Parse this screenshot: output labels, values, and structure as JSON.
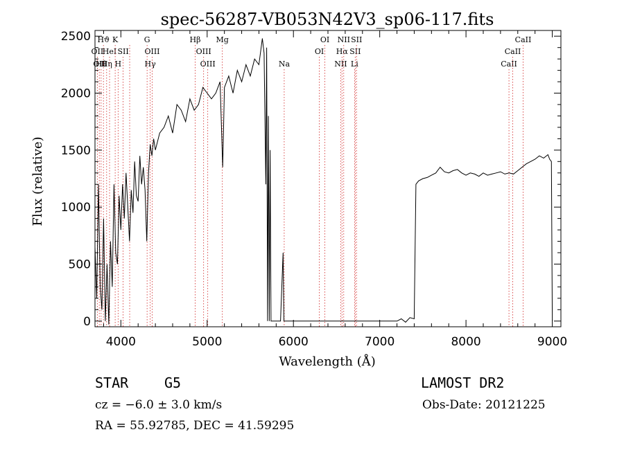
{
  "chart_data": {
    "type": "line",
    "title": "spec-56287-VB053N42V3_sp06-117.fits",
    "xlabel": "Wavelength (Å)",
    "ylabel": "Flux (relative)",
    "xlim": [
      3700,
      9100
    ],
    "ylim": [
      -50,
      2550
    ],
    "x_ticks": [
      4000,
      5000,
      6000,
      7000,
      8000,
      9000
    ],
    "y_ticks": [
      0,
      500,
      1000,
      1500,
      2000,
      2500
    ],
    "grid": false,
    "series": [
      {
        "x": [
          3700,
          3720,
          3740,
          3760,
          3780,
          3800,
          3820,
          3840,
          3860,
          3880,
          3900,
          3920,
          3940,
          3960,
          3980,
          4000,
          4020,
          4040,
          4060,
          4080,
          4100,
          4120,
          4140,
          4160,
          4180,
          4200,
          4220,
          4240,
          4260,
          4280,
          4300,
          4320,
          4340,
          4360,
          4380,
          4400,
          4450,
          4500,
          4550,
          4600,
          4650,
          4700,
          4750,
          4800,
          4850,
          4900,
          4950,
          5000,
          5050,
          5100,
          5150,
          5180,
          5200,
          5250,
          5300,
          5350,
          5400,
          5450,
          5500,
          5550,
          5600,
          5640,
          5660,
          5680,
          5690,
          5700,
          5710,
          5720,
          5730,
          5740,
          5760,
          5800,
          5850,
          5880,
          5890,
          5900,
          5910,
          5950,
          6000,
          6500,
          7000,
          7200,
          7250,
          7300,
          7350,
          7400,
          7420,
          7450,
          7500,
          7550,
          7600,
          7650,
          7700,
          7750,
          7800,
          7850,
          7900,
          7950,
          8000,
          8050,
          8100,
          8150,
          8200,
          8250,
          8300,
          8350,
          8400,
          8450,
          8500,
          8550,
          8600,
          8650,
          8700,
          8750,
          8800,
          8850,
          8900,
          8950,
          8970,
          8990,
          9000
        ],
        "y": [
          650,
          200,
          1200,
          300,
          100,
          900,
          0,
          500,
          -30,
          700,
          300,
          1200,
          600,
          500,
          1100,
          800,
          1200,
          900,
          1300,
          1000,
          700,
          1150,
          950,
          1400,
          1100,
          1050,
          1450,
          1200,
          1350,
          1150,
          700,
          1300,
          1550,
          1450,
          1600,
          1500,
          1650,
          1700,
          1800,
          1650,
          1900,
          1850,
          1750,
          1950,
          1850,
          1900,
          2050,
          2000,
          1950,
          2000,
          2100,
          1350,
          2050,
          2150,
          2000,
          2200,
          2100,
          2250,
          2150,
          2300,
          2250,
          2480,
          2350,
          1200,
          2400,
          0,
          1800,
          0,
          1500,
          0,
          0,
          0,
          0,
          600,
          0,
          0,
          0,
          0,
          0,
          0,
          0,
          0,
          20,
          -10,
          30,
          20,
          1200,
          1230,
          1250,
          1260,
          1280,
          1300,
          1350,
          1310,
          1300,
          1320,
          1330,
          1300,
          1280,
          1300,
          1290,
          1270,
          1300,
          1280,
          1290,
          1300,
          1310,
          1290,
          1300,
          1290,
          1320,
          1350,
          1380,
          1400,
          1420,
          1450,
          1430,
          1460,
          1420,
          1400,
          0
        ]
      }
    ],
    "line_marks": [
      {
        "x": 3727,
        "label": "OII",
        "row": 1
      },
      {
        "x": 3750,
        "label": "OII",
        "row": 2
      },
      {
        "x": 3771,
        "label": "Hθ",
        "row": 2
      },
      {
        "x": 3798,
        "label": "Hϑ",
        "row": 0
      },
      {
        "x": 3835,
        "label": "Hη",
        "row": 2
      },
      {
        "x": 3869,
        "label": "HeI",
        "row": 1
      },
      {
        "x": 3934,
        "label": "K",
        "row": 0
      },
      {
        "x": 3968,
        "label": "H",
        "row": 2
      },
      {
        "x": 4026,
        "label": "SII",
        "row": 1
      },
      {
        "x": 4102,
        "label": "",
        "row": 0
      },
      {
        "x": 4304,
        "label": "G",
        "row": 0
      },
      {
        "x": 4340,
        "label": "Hγ",
        "row": 2
      },
      {
        "x": 4363,
        "label": "OIII",
        "row": 1
      },
      {
        "x": 4861,
        "label": "Hβ",
        "row": 0
      },
      {
        "x": 4959,
        "label": "OIII",
        "row": 1
      },
      {
        "x": 5007,
        "label": "OIII",
        "row": 2
      },
      {
        "x": 5176,
        "label": "Mg",
        "row": 0
      },
      {
        "x": 5893,
        "label": "Na",
        "row": 2
      },
      {
        "x": 6300,
        "label": "OI",
        "row": 1
      },
      {
        "x": 6364,
        "label": "OI",
        "row": 0
      },
      {
        "x": 6548,
        "label": "NII",
        "row": 2
      },
      {
        "x": 6563,
        "label": "Hα",
        "row": 1
      },
      {
        "x": 6583,
        "label": "NII",
        "row": 0
      },
      {
        "x": 6716,
        "label": "SII",
        "row": 1
      },
      {
        "x": 6708,
        "label": "Li",
        "row": 2
      },
      {
        "x": 6731,
        "label": "SII",
        "row": 0
      },
      {
        "x": 8498,
        "label": "CaII",
        "row": 2
      },
      {
        "x": 8542,
        "label": "CaII",
        "row": 1
      },
      {
        "x": 8662,
        "label": "CaII",
        "row": 0
      }
    ]
  },
  "info": {
    "class_type": "STAR",
    "subclass": "G5",
    "survey": "LAMOST DR2",
    "cz": "cz = −6.0 ± 3.0 km/s",
    "obs_date": "Obs-Date: 20121225",
    "coords": "RA =  55.92785, DEC =  41.59295"
  }
}
